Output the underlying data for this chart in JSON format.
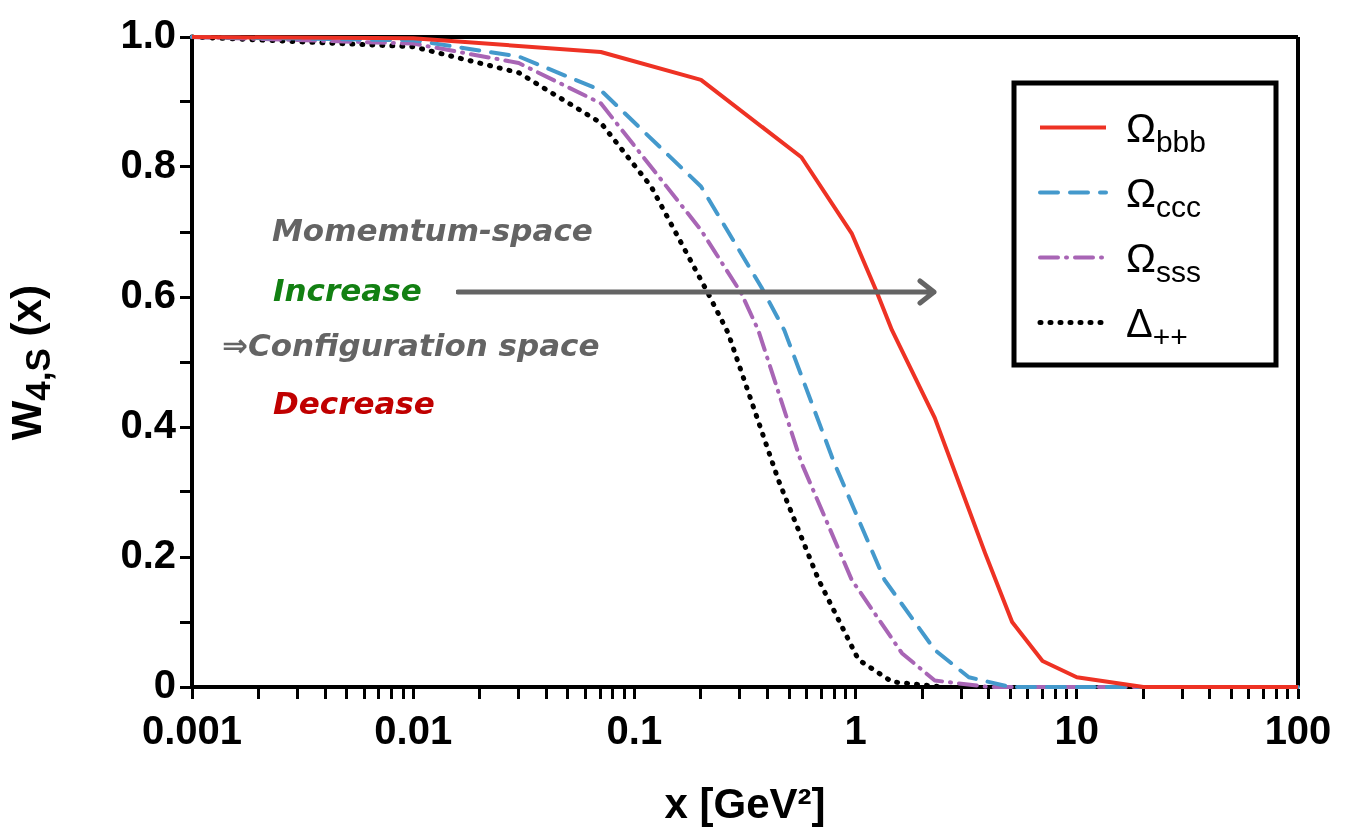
{
  "chart_data": {
    "type": "line",
    "xlabel": "x [GeV²]",
    "ylabel": "W$_{4,S}$ (x)",
    "annotations": [
      "Momemtum-space",
      "Increase",
      "⇒Configuration space",
      "Decrease"
    ],
    "log": "x",
    "xlim": [
      0.001,
      100
    ],
    "ylim": [
      0,
      1
    ],
    "xticks": [
      0.001,
      {
        "value": 0.002,
        "label": null
      },
      {
        "value": 0.003,
        "label": null
      },
      {
        "value": 0.004,
        "label": null
      },
      {
        "value": 0.005,
        "label": null
      },
      {
        "value": 0.006,
        "label": null
      },
      {
        "value": 0.007,
        "label": null
      },
      {
        "value": 0.008,
        "label": null
      },
      {
        "value": 0.009,
        "label": null
      },
      0.01,
      {
        "value": 0.02,
        "label": null
      },
      {
        "value": 0.03,
        "label": null
      },
      {
        "value": 0.04,
        "label": null
      },
      {
        "value": 0.05,
        "label": null
      },
      {
        "value": 0.06,
        "label": null
      },
      {
        "value": 0.07,
        "label": null
      },
      {
        "value": 0.08,
        "label": null
      },
      {
        "value": 0.09,
        "label": null
      },
      0.1,
      {
        "value": 0.2,
        "label": null
      },
      {
        "value": 0.3,
        "label": null
      },
      {
        "value": 0.4,
        "label": null
      },
      {
        "value": 0.5,
        "label": null
      },
      {
        "value": 0.6,
        "label": null
      },
      {
        "value": 0.7,
        "label": null
      },
      {
        "value": 0.8,
        "label": null
      },
      {
        "value": 0.9,
        "label": null
      },
      1,
      {
        "value": 2,
        "label": null
      },
      {
        "value": 3,
        "label": null
      },
      {
        "value": 4,
        "label": null
      },
      {
        "value": 5,
        "label": null
      },
      {
        "value": 6,
        "label": null
      },
      {
        "value": 7,
        "label": null
      },
      {
        "value": 8,
        "label": null
      },
      {
        "value": 9,
        "label": null
      },
      10,
      {
        "value": 20,
        "label": null
      },
      {
        "value": 30,
        "label": null
      },
      {
        "value": 40,
        "label": null
      },
      {
        "value": 50,
        "label": null
      },
      {
        "value": 60,
        "label": null
      },
      {
        "value": 70,
        "label": null
      },
      {
        "value": 80,
        "label": null
      },
      {
        "value": 90,
        "label": null
      },
      100
    ],
    "yticks": [
      0,
      {
        "value": 0.1,
        "label": null
      },
      0.2,
      {
        "value": 0.3,
        "label": null
      },
      0.4,
      {
        "value": 0.5,
        "label": null
      },
      0.6,
      {
        "value": 0.7,
        "label": null
      },
      0.8,
      {
        "value": 0.9,
        "label": null
      },
      {
        "value": 1,
        "label": "1.0"
      }
    ],
    "legend": "top right",
    "marker": "none",
    "series": [
      {
        "name": "Ω$_{bbb}$",
        "color": "#ee3224",
        "line_style": "solid",
        "x": [
          0.001,
          0.01,
          0.0705,
          0.2,
          0.569,
          0.96,
          1.245,
          1.46,
          2.28,
          3.85,
          5.1,
          7,
          10,
          20,
          100
        ],
        "values": [
          1.0,
          0.998,
          0.977,
          0.934,
          0.815,
          0.698,
          0.608,
          0.549,
          0.414,
          0.206,
          0.1,
          0.04,
          0.015,
          0,
          0
        ]
      },
      {
        "name": "Ω$_{ccc}$",
        "color": "#4499cc",
        "line_style": "dashed",
        "x": [
          0.001,
          0.01,
          0.03,
          0.0705,
          0.2,
          0.375,
          0.476,
          0.8,
          1.35,
          2.28,
          3.25,
          5,
          100
        ],
        "values": [
          1.0,
          0.995,
          0.97,
          0.918,
          0.77,
          0.615,
          0.549,
          0.345,
          0.165,
          0.057,
          0.015,
          0,
          0
        ]
      },
      {
        "name": "Ω$_{sss}$",
        "color": "#a865b5",
        "line_style": "dashdot",
        "x": [
          0.001,
          0.01,
          0.03,
          0.0705,
          0.2,
          0.304,
          0.363,
          0.569,
          0.96,
          1.62,
          2.28,
          4,
          100
        ],
        "values": [
          1.0,
          0.99,
          0.96,
          0.898,
          0.703,
          0.606,
          0.549,
          0.345,
          0.165,
          0.052,
          0.01,
          0,
          0
        ]
      },
      {
        "name": "Δ$_{++}$",
        "color": "#000000",
        "line_style": "dotted",
        "x": [
          0.001,
          0.01,
          0.03,
          0.0705,
          0.119,
          0.215,
          0.265,
          0.448,
          0.68,
          1.03,
          1.46,
          2.5
        ],
        "values": [
          1.0,
          0.985,
          0.945,
          0.868,
          0.77,
          0.606,
          0.545,
          0.318,
          0.165,
          0.042,
          0.008,
          0
        ]
      }
    ]
  }
}
